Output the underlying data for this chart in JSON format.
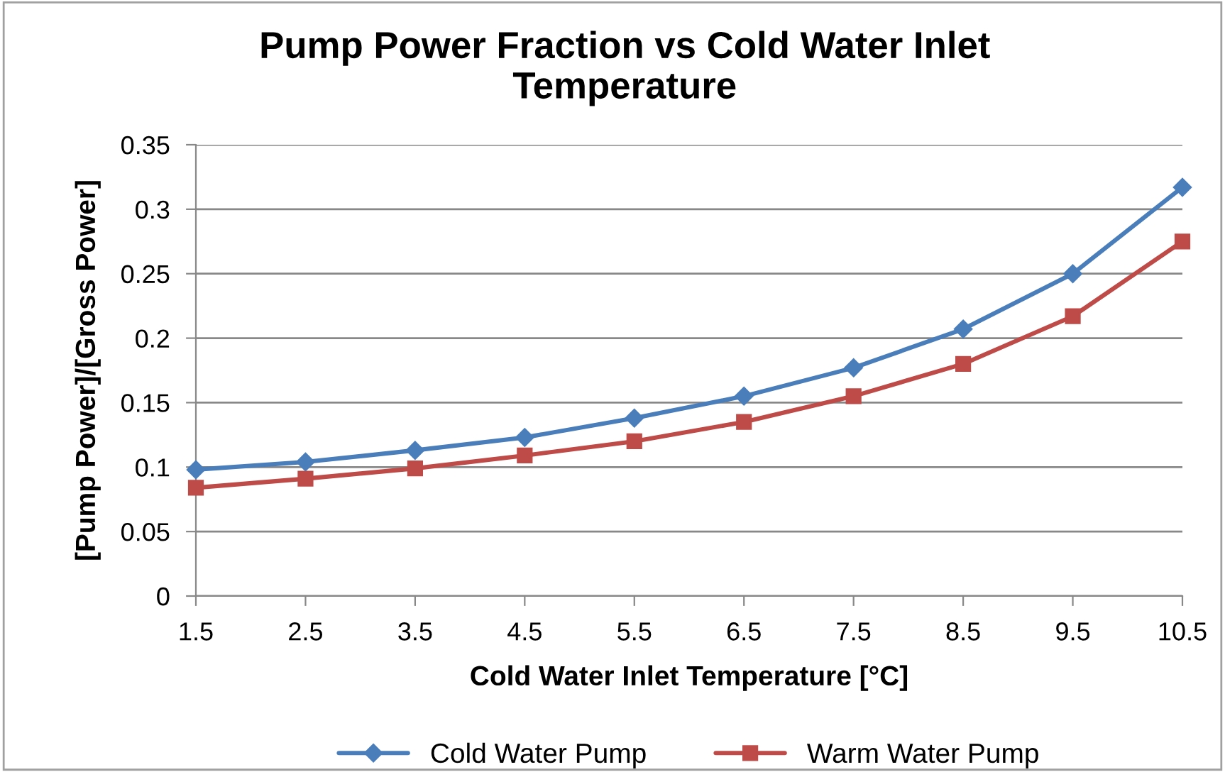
{
  "chart_data": {
    "type": "line",
    "title": "Pump Power Fraction vs Cold Water Inlet\nTemperature",
    "xlabel": "Cold Water Inlet Temperature [°C]",
    "ylabel": "[Pump Power]/[Gross Power]",
    "x": [
      1.5,
      2.5,
      3.5,
      4.5,
      5.5,
      6.5,
      7.5,
      8.5,
      9.5,
      10.5
    ],
    "xlim": [
      1.5,
      10.5
    ],
    "xticks": [
      1.5,
      2.5,
      3.5,
      4.5,
      5.5,
      6.5,
      7.5,
      8.5,
      9.5,
      10.5
    ],
    "ylim": [
      0,
      0.35
    ],
    "yticks": [
      0,
      0.05,
      0.1,
      0.15,
      0.2,
      0.25,
      0.3,
      0.35
    ],
    "grid": "y",
    "legend": "bottom",
    "line_style": "solid",
    "series": [
      {
        "name": "Cold Water Pump",
        "color": "#4a7ebb",
        "marker": "diamond",
        "values": [
          0.098,
          0.104,
          0.113,
          0.123,
          0.138,
          0.155,
          0.177,
          0.207,
          0.25,
          0.317
        ]
      },
      {
        "name": "Warm Water Pump",
        "color": "#be4b48",
        "marker": "square",
        "values": [
          0.084,
          0.091,
          0.099,
          0.109,
          0.12,
          0.135,
          0.155,
          0.18,
          0.217,
          0.275
        ]
      }
    ]
  }
}
